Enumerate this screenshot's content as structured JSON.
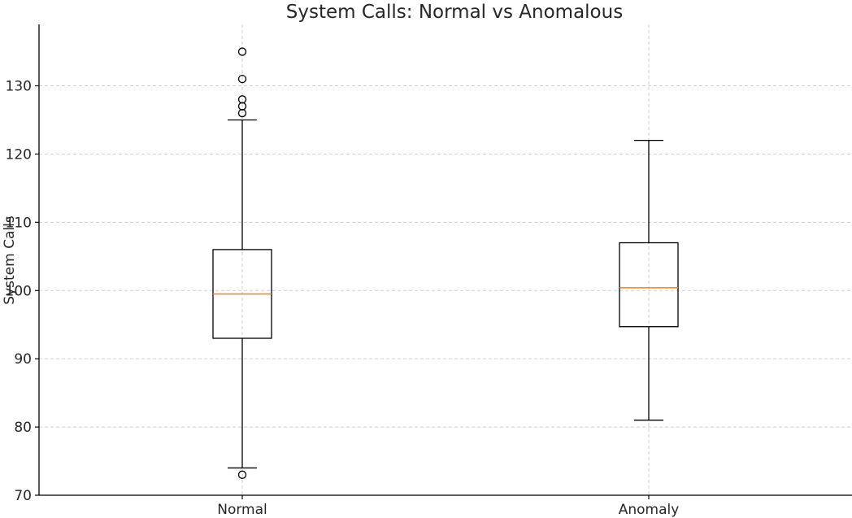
{
  "chart_data": {
    "type": "boxplot",
    "title": "System Calls: Normal vs Anomalous",
    "xlabel": "",
    "ylabel": "System Calls",
    "ylim": [
      70,
      139
    ],
    "yticks": [
      70,
      80,
      90,
      100,
      110,
      120,
      130
    ],
    "grid": true,
    "categories": [
      "Normal",
      "Anomaly"
    ],
    "boxes": [
      {
        "name": "Normal",
        "whisker_low": 74,
        "q1": 93,
        "median": 99.5,
        "q3": 106,
        "whisker_high": 125,
        "outliers": [
          73,
          126,
          127,
          128,
          131,
          135
        ]
      },
      {
        "name": "Anomaly",
        "whisker_low": 81,
        "q1": 94.7,
        "median": 100.4,
        "q3": 107,
        "whisker_high": 122,
        "outliers": []
      }
    ],
    "colors": {
      "box": "#000000",
      "median": "#ff7f0e",
      "grid": "#cfcfcf",
      "text": "#262626"
    }
  }
}
